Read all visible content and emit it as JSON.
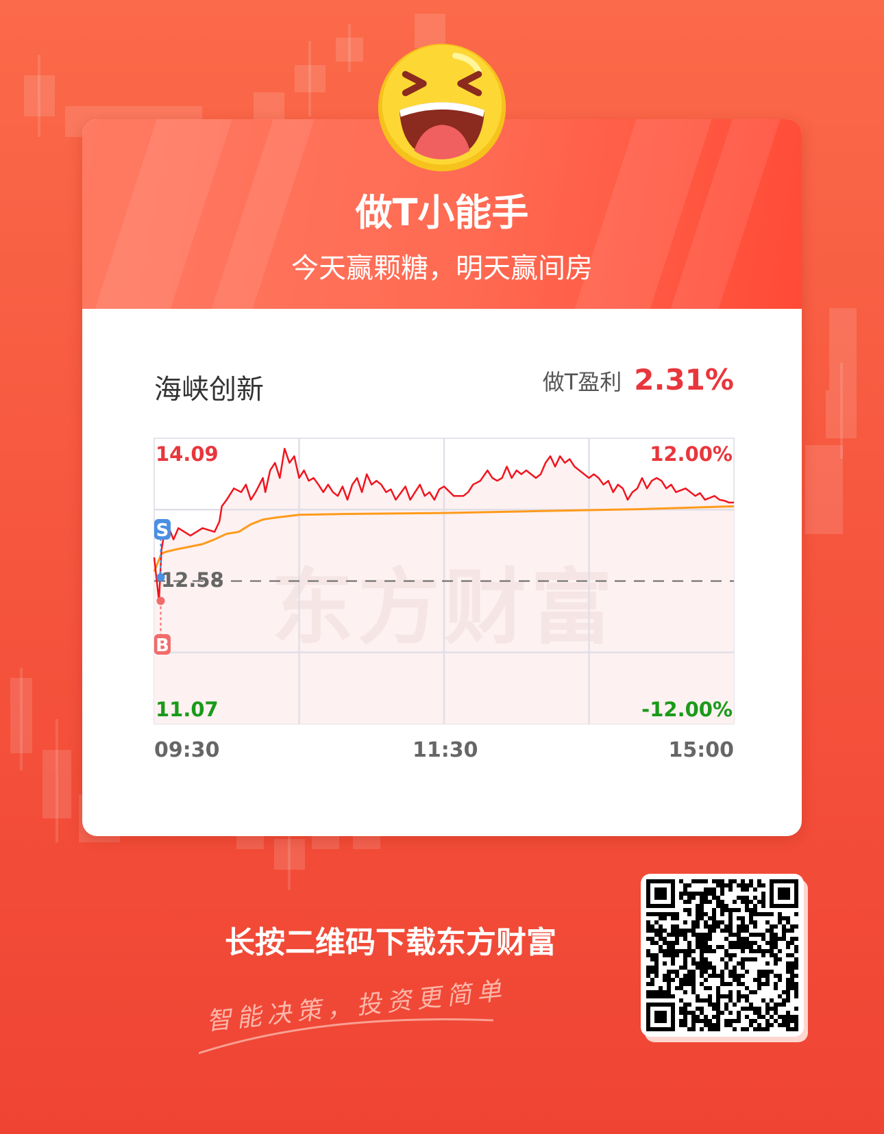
{
  "header": {
    "title": "做T小能手",
    "subtitle": "今天赢颗糖，明天赢间房",
    "emoji_icon": "laughing-face-icon"
  },
  "stock": {
    "name": "海峡创新",
    "profit_label": "做T盈利",
    "profit_value": "2.31%"
  },
  "chart_data": {
    "type": "line",
    "title": "",
    "prev_close": 12.58,
    "ylim": [
      11.07,
      14.09
    ],
    "y_labels_left": {
      "top": "14.09",
      "mid": "12.58",
      "bottom": "11.07"
    },
    "y_labels_right": {
      "top": "12.00%",
      "bottom": "-12.00%"
    },
    "x_tick_labels": [
      "09:30",
      "11:30",
      "15:00"
    ],
    "watermark": "东方财富",
    "colors": {
      "price": "#f0141e",
      "average": "#ff9a1a",
      "up": "#e8363c",
      "down": "#1a9a1a",
      "fill": "#fdf1f1"
    },
    "series": [
      {
        "times": [
          "09:30",
          "09:32",
          "09:33",
          "09:35",
          "09:38",
          "09:40",
          "09:45",
          "09:50",
          "09:55",
          "09:57",
          "09:58",
          "10:00",
          "10:03",
          "10:06",
          "10:08",
          "10:10",
          "10:12",
          "10:15",
          "10:16",
          "10:18",
          "10:20",
          "10:22",
          "10:24",
          "10:26",
          "10:28",
          "10:30",
          "10:32",
          "10:34",
          "10:36",
          "10:38",
          "10:40",
          "10:42",
          "10:44",
          "10:46",
          "10:48",
          "10:50",
          "10:52",
          "10:54",
          "10:56",
          "10:58",
          "11:00",
          "11:02",
          "11:04",
          "11:06",
          "11:08",
          "11:10",
          "11:12",
          "11:14",
          "11:16",
          "11:18",
          "11:20",
          "11:22",
          "11:24",
          "11:26",
          "11:28",
          "11:30",
          "13:04",
          "13:08",
          "13:10",
          "13:12",
          "13:15",
          "13:18",
          "13:20",
          "13:22",
          "13:24",
          "13:26",
          "13:28",
          "13:30",
          "13:32",
          "13:34",
          "13:38",
          "13:40",
          "13:42",
          "13:44",
          "13:46",
          "13:48",
          "13:50",
          "13:52",
          "13:54",
          "13:56",
          "13:58",
          "14:00",
          "14:02",
          "14:04",
          "14:06",
          "14:08",
          "14:10",
          "14:12",
          "14:14",
          "14:16",
          "14:18",
          "14:20",
          "14:22",
          "14:24",
          "14:26",
          "14:28",
          "14:30",
          "14:32",
          "14:34",
          "14:36",
          "14:38",
          "14:40",
          "14:42",
          "14:44",
          "14:46",
          "14:48",
          "14:50",
          "14:52",
          "14:54",
          "14:56",
          "14:58",
          "15:00"
        ],
        "values": [
          12.83,
          12.37,
          12.91,
          13.21,
          13.02,
          13.14,
          13.06,
          13.14,
          13.1,
          13.21,
          13.37,
          13.44,
          13.56,
          13.52,
          13.6,
          13.44,
          13.52,
          13.67,
          13.52,
          13.75,
          13.83,
          13.67,
          13.98,
          13.83,
          13.9,
          13.67,
          13.75,
          13.64,
          13.67,
          13.6,
          13.52,
          13.6,
          13.52,
          13.48,
          13.58,
          13.44,
          13.6,
          13.67,
          13.52,
          13.71,
          13.6,
          13.64,
          13.6,
          13.52,
          13.55,
          13.44,
          13.51,
          13.58,
          13.44,
          13.52,
          13.6,
          13.48,
          13.52,
          13.44,
          13.55,
          13.58,
          13.48,
          13.48,
          13.52,
          13.6,
          13.64,
          13.75,
          13.67,
          13.64,
          13.67,
          13.79,
          13.67,
          13.75,
          13.71,
          13.75,
          13.67,
          13.71,
          13.83,
          13.9,
          13.79,
          13.9,
          13.83,
          13.87,
          13.79,
          13.75,
          13.71,
          13.67,
          13.71,
          13.67,
          13.6,
          13.64,
          13.52,
          13.6,
          13.56,
          13.44,
          13.52,
          13.56,
          13.67,
          13.56,
          13.64,
          13.67,
          13.64,
          13.56,
          13.6,
          13.52,
          13.54,
          13.56,
          13.52,
          13.48,
          13.51,
          13.44,
          13.46,
          13.48,
          13.44,
          13.43,
          13.41,
          13.41
        ]
      },
      {
        "times": [
          "09:30",
          "09:33",
          "09:35",
          "09:40",
          "09:50",
          "09:55",
          "10:00",
          "10:05",
          "10:10",
          "10:15",
          "10:20",
          "10:30",
          "10:50",
          "11:30",
          "13:40",
          "14:20",
          "15:00"
        ],
        "values": [
          12.68,
          12.87,
          12.89,
          12.92,
          12.97,
          13.02,
          13.08,
          13.1,
          13.18,
          13.23,
          13.25,
          13.28,
          13.29,
          13.3,
          13.32,
          13.34,
          13.37
        ]
      }
    ],
    "markers": [
      {
        "label": "S",
        "time": "09:31",
        "price": 12.62,
        "color": "#4a90e2"
      },
      {
        "label": "B",
        "time": "09:31",
        "price": 12.37,
        "color": "#f26b6b"
      }
    ]
  },
  "footer": {
    "download_text": "长按二维码下载东方财富",
    "slogan": "智能决策，投资更简单",
    "qr_icon": "qr-code-icon"
  }
}
